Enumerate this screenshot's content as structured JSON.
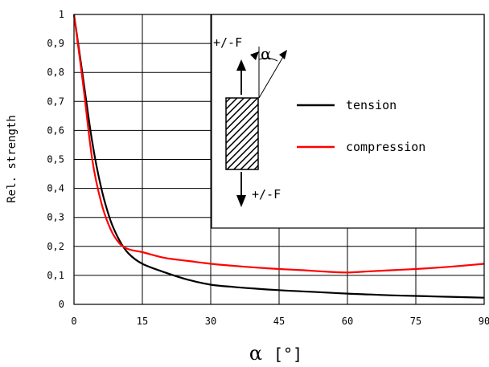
{
  "chart_data": {
    "type": "line",
    "xlabel_symbol": "α",
    "xlabel_unit": "[°]",
    "ylabel": "Rel. strength",
    "xlim": [
      0,
      90
    ],
    "ylim": [
      0,
      1
    ],
    "x_ticks": [
      0,
      15,
      30,
      45,
      60,
      75,
      90
    ],
    "x_tick_labels": [
      "0",
      "15",
      "30",
      "45",
      "60",
      "75",
      "90"
    ],
    "y_ticks": [
      0,
      0.1,
      0.2,
      0.3,
      0.4,
      0.5,
      0.6,
      0.7,
      0.8,
      0.9,
      1
    ],
    "y_tick_labels": [
      "0",
      "0,1",
      "0,2",
      "0,3",
      "0,4",
      "0,5",
      "0,6",
      "0,7",
      "0,8",
      "0,9",
      "1"
    ],
    "grid": true,
    "legend_position": "top-right",
    "series": [
      {
        "name": "tension",
        "color": "#000000",
        "x": [
          0,
          2,
          4,
          6,
          8,
          10,
          12,
          15,
          20,
          25,
          30,
          35,
          40,
          45,
          50,
          55,
          60,
          65,
          70,
          75,
          80,
          85,
          90
        ],
        "y": [
          1.0,
          0.78,
          0.56,
          0.4,
          0.29,
          0.22,
          0.175,
          0.14,
          0.11,
          0.085,
          0.068,
          0.06,
          0.054,
          0.049,
          0.045,
          0.041,
          0.037,
          0.034,
          0.031,
          0.029,
          0.027,
          0.025,
          0.023
        ]
      },
      {
        "name": "compression",
        "color": "#ff0000",
        "x": [
          0,
          2,
          4,
          6,
          8,
          10,
          12,
          15,
          20,
          25,
          30,
          35,
          40,
          45,
          50,
          55,
          60,
          65,
          70,
          75,
          80,
          85,
          90
        ],
        "y": [
          1.0,
          0.76,
          0.5,
          0.35,
          0.26,
          0.21,
          0.19,
          0.18,
          0.16,
          0.15,
          0.14,
          0.133,
          0.127,
          0.122,
          0.118,
          0.113,
          0.11,
          0.114,
          0.118,
          0.122,
          0.127,
          0.133,
          0.14
        ]
      }
    ],
    "inset": {
      "force_top": "+/-F",
      "force_bottom": "+/-F",
      "angle_symbol": "α"
    }
  }
}
